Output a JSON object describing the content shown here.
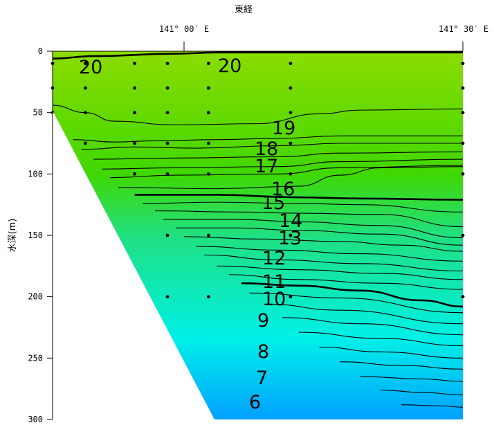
{
  "chart_data": {
    "type": "contour",
    "xlabel": "東経",
    "ylabel": "水深(m)",
    "x_tick_labels": [
      "141° 00′ E",
      "141° 30′ E"
    ],
    "ylim": [
      0,
      300
    ],
    "y_ticks": [
      0,
      50,
      100,
      150,
      200,
      250,
      300
    ],
    "y_tick_labels": [
      "0",
      "50",
      "100",
      "150",
      "200",
      "250",
      "300"
    ],
    "colors": {
      "warm": "#8cdc00",
      "mid": "#20e080",
      "cold_cyan": "#00f0e8",
      "coldest": "#00a0ff",
      "land": "#ffffff"
    },
    "contour_labels": [
      "20",
      "20",
      "19",
      "18",
      "17",
      "16",
      "15",
      "14",
      "13",
      "12",
      "11",
      "10",
      "9",
      "8",
      "7",
      "6"
    ],
    "isotherms": [
      {
        "level": 20,
        "points": [
          [
            0,
            6
          ],
          [
            0.1,
            4
          ],
          [
            0.3,
            2
          ],
          [
            0.4,
            1
          ],
          [
            1,
            1
          ]
        ]
      },
      {
        "level": 19,
        "points": [
          [
            0,
            44
          ],
          [
            0.08,
            50
          ],
          [
            0.15,
            57
          ],
          [
            0.3,
            60
          ],
          [
            0.5,
            59
          ],
          [
            0.65,
            51
          ],
          [
            0.75,
            48
          ],
          [
            1,
            47
          ]
        ]
      },
      {
        "level": 18,
        "points": [
          [
            0.05,
            72
          ],
          [
            0.15,
            74
          ],
          [
            0.25,
            73
          ],
          [
            0.4,
            72
          ],
          [
            0.55,
            71
          ],
          [
            0.7,
            69
          ],
          [
            1,
            69
          ]
        ]
      },
      {
        "level": 17.5,
        "points": [
          [
            0.07,
            80
          ],
          [
            0.2,
            78
          ],
          [
            0.35,
            79
          ],
          [
            0.55,
            77
          ],
          [
            0.7,
            75
          ],
          [
            1,
            75
          ]
        ]
      },
      {
        "level": 17,
        "points": [
          [
            0.1,
            88
          ],
          [
            0.3,
            87
          ],
          [
            0.55,
            86
          ],
          [
            0.7,
            83
          ],
          [
            1,
            82
          ]
        ]
      },
      {
        "level": 16.5,
        "points": [
          [
            0.12,
            96
          ],
          [
            0.3,
            95
          ],
          [
            0.55,
            94
          ],
          [
            0.7,
            90
          ],
          [
            1,
            88
          ]
        ]
      },
      {
        "level": 16,
        "points": [
          [
            0.14,
            103
          ],
          [
            0.3,
            101
          ],
          [
            0.55,
            100
          ],
          [
            0.7,
            95
          ],
          [
            1,
            93
          ]
        ]
      },
      {
        "level": 15.5,
        "points": [
          [
            0.16,
            111
          ],
          [
            0.4,
            112
          ],
          [
            0.6,
            110
          ],
          [
            0.7,
            101
          ],
          [
            0.8,
            95
          ],
          [
            1,
            94
          ]
        ]
      },
      {
        "level": 15,
        "points": [
          [
            0.2,
            117
          ],
          [
            0.4,
            117
          ],
          [
            0.6,
            119
          ],
          [
            0.75,
            120
          ],
          [
            1,
            121
          ]
        ]
      },
      {
        "level": 14.5,
        "points": [
          [
            0.22,
            124
          ],
          [
            0.4,
            123
          ],
          [
            0.6,
            124
          ],
          [
            0.75,
            125
          ],
          [
            1,
            131
          ]
        ]
      },
      {
        "level": 14,
        "points": [
          [
            0.25,
            130
          ],
          [
            0.45,
            131
          ],
          [
            0.6,
            132
          ],
          [
            0.8,
            133
          ],
          [
            1,
            143
          ]
        ]
      },
      {
        "level": 13.5,
        "points": [
          [
            0.27,
            137
          ],
          [
            0.45,
            137
          ],
          [
            0.6,
            139
          ],
          [
            0.8,
            142
          ],
          [
            1,
            152
          ]
        ]
      },
      {
        "level": 13,
        "points": [
          [
            0.3,
            144
          ],
          [
            0.45,
            144
          ],
          [
            0.6,
            146
          ],
          [
            0.8,
            149
          ],
          [
            1,
            158
          ]
        ]
      },
      {
        "level": 12.5,
        "points": [
          [
            0.32,
            151
          ],
          [
            0.5,
            153
          ],
          [
            0.7,
            155
          ],
          [
            0.85,
            158
          ],
          [
            1,
            163
          ]
        ]
      },
      {
        "level": 12,
        "points": [
          [
            0.35,
            159
          ],
          [
            0.55,
            162
          ],
          [
            0.75,
            165
          ],
          [
            1,
            171
          ]
        ]
      },
      {
        "level": 11.5,
        "points": [
          [
            0.37,
            166
          ],
          [
            0.55,
            170
          ],
          [
            0.75,
            173
          ],
          [
            1,
            179
          ]
        ]
      },
      {
        "level": 11,
        "points": [
          [
            0.4,
            175
          ],
          [
            0.6,
            178
          ],
          [
            0.8,
            181
          ],
          [
            1,
            186
          ]
        ]
      },
      {
        "level": 10.5,
        "points": [
          [
            0.43,
            182
          ],
          [
            0.6,
            186
          ],
          [
            0.8,
            189
          ],
          [
            1,
            194
          ]
        ]
      },
      {
        "level": 10,
        "points": [
          [
            0.46,
            189
          ],
          [
            0.6,
            191
          ],
          [
            0.75,
            195
          ],
          [
            0.9,
            203
          ],
          [
            1,
            208
          ]
        ]
      },
      {
        "level": 9.5,
        "points": [
          [
            0.48,
            197
          ],
          [
            0.7,
            201
          ],
          [
            1,
            213
          ]
        ]
      },
      {
        "level": 9,
        "points": [
          [
            0.52,
            206
          ],
          [
            0.7,
            211
          ],
          [
            1,
            222
          ]
        ]
      },
      {
        "level": 8.5,
        "points": [
          [
            0.56,
            217
          ],
          [
            0.75,
            222
          ],
          [
            1,
            231
          ]
        ]
      },
      {
        "level": 8,
        "points": [
          [
            0.6,
            229
          ],
          [
            0.8,
            234
          ],
          [
            1,
            240
          ]
        ]
      },
      {
        "level": 7.5,
        "points": [
          [
            0.65,
            241
          ],
          [
            0.8,
            245
          ],
          [
            1,
            250
          ]
        ]
      },
      {
        "level": 7,
        "points": [
          [
            0.7,
            253
          ],
          [
            0.85,
            256
          ],
          [
            1,
            259
          ]
        ]
      },
      {
        "level": 6.5,
        "points": [
          [
            0.75,
            265
          ],
          [
            0.9,
            267
          ],
          [
            1,
            269
          ]
        ]
      },
      {
        "level": 6,
        "points": [
          [
            0.8,
            276
          ],
          [
            0.9,
            278
          ],
          [
            1,
            280
          ]
        ]
      },
      {
        "level": 5.5,
        "points": [
          [
            0.85,
            288
          ],
          [
            0.95,
            289
          ],
          [
            1,
            290
          ]
        ]
      }
    ],
    "stations": [
      {
        "x": 0,
        "depths": [
          10,
          30,
          50
        ]
      },
      {
        "x": 0.08,
        "depths": [
          10,
          30,
          50,
          75
        ]
      },
      {
        "x": 0.2,
        "depths": [
          10,
          30,
          50,
          75,
          100
        ]
      },
      {
        "x": 0.28,
        "depths": [
          10,
          30,
          50,
          75,
          100,
          150,
          200
        ]
      },
      {
        "x": 0.38,
        "depths": [
          10,
          30,
          50,
          75,
          100,
          150,
          200
        ]
      },
      {
        "x": 0.58,
        "depths": [
          10,
          30,
          50,
          75,
          100,
          150,
          200
        ]
      },
      {
        "x": 1,
        "depths": [
          10,
          30,
          50,
          75,
          100,
          150,
          200
        ]
      }
    ]
  }
}
